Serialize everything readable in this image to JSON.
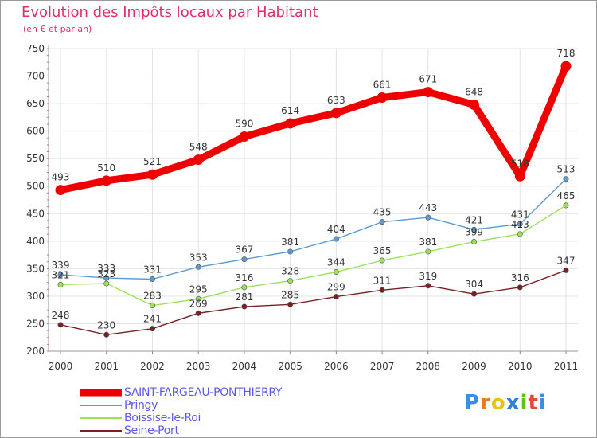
{
  "title": "Evolution des Impôts locaux par Habitant",
  "subtitle": "(en € et par an)",
  "logo": {
    "text": "Proxiti",
    "letter_colors": [
      "#3b8ee0",
      "#f07a1a",
      "#e8c21a",
      "#2e7fd6",
      "#62c21a",
      "#e24a3a",
      "#3b8ee0"
    ]
  },
  "chart_data": {
    "type": "line",
    "categories": [
      "2000",
      "2001",
      "2002",
      "2003",
      "2004",
      "2005",
      "2006",
      "2007",
      "2008",
      "2009",
      "2010",
      "2011"
    ],
    "ylim": [
      200,
      750
    ],
    "yticks": [
      200,
      250,
      300,
      350,
      400,
      450,
      500,
      550,
      600,
      650,
      700,
      750
    ],
    "grid": true,
    "legend_position": "bottom-left",
    "series": [
      {
        "name": "SAINT-FARGEAU-PONTHIERRY",
        "color": "#ee0000",
        "values": [
          493,
          510,
          521,
          548,
          590,
          614,
          633,
          661,
          671,
          648,
          518,
          718
        ],
        "value_labels": [
          "493",
          "510",
          "521",
          "548",
          "590",
          "614",
          "633",
          "661",
          "671",
          "648",
          "518",
          "718"
        ]
      },
      {
        "name": "Pringy",
        "color": "#5b9bd0",
        "values": [
          339,
          333,
          331,
          353,
          367,
          381,
          404,
          435,
          443,
          421,
          431,
          513
        ],
        "value_labels": [
          "339",
          "333",
          "331",
          "353",
          "367",
          "381",
          "404",
          "435",
          "443",
          "421",
          "431",
          "513"
        ]
      },
      {
        "name": "Boissise-le-Roi",
        "color": "#9de05a",
        "values": [
          321,
          323,
          283,
          295,
          316,
          328,
          344,
          365,
          381,
          399,
          413,
          465
        ],
        "value_labels": [
          "321",
          "323",
          "283",
          "295",
          "316",
          "328",
          "344",
          "365",
          "381",
          "399",
          "413",
          "465"
        ]
      },
      {
        "name": "Seine-Port",
        "color": "#7a1f22",
        "values": [
          248,
          230,
          241,
          269,
          281,
          285,
          299,
          311,
          319,
          304,
          316,
          347
        ],
        "value_labels": [
          "248",
          "230",
          "241",
          "269",
          "281",
          "285",
          "299",
          "311",
          "319",
          "304",
          "316",
          "347"
        ]
      }
    ]
  }
}
